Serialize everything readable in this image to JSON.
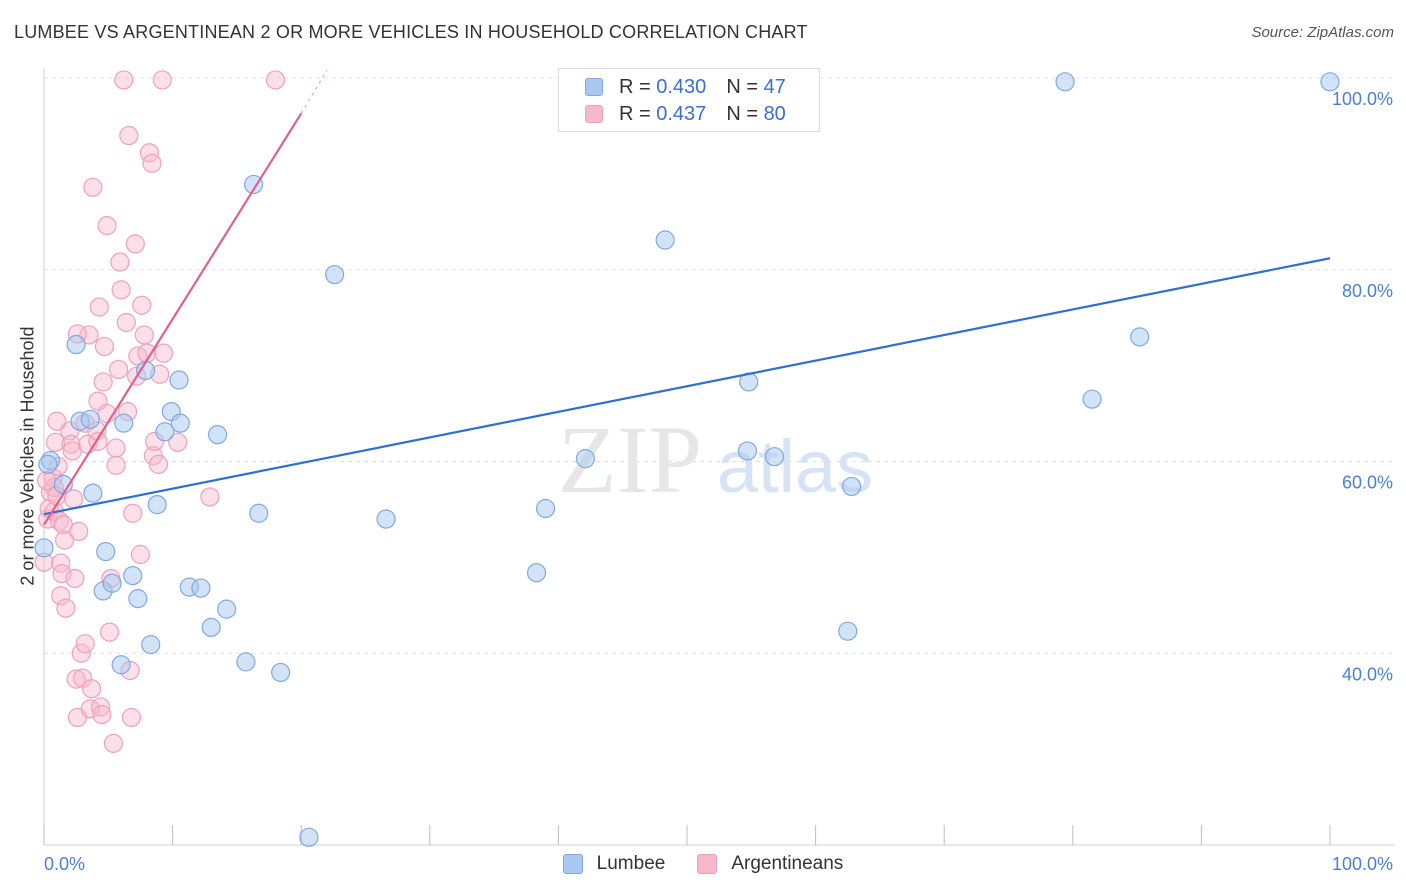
{
  "title": "LUMBEE VS ARGENTINEAN 2 OR MORE VEHICLES IN HOUSEHOLD CORRELATION CHART",
  "source": "Source: ZipAtlas.com",
  "watermark": {
    "zip": "ZIP",
    "atlas": "atlas"
  },
  "legend": {
    "rows": [
      {
        "r_label": "R =",
        "r_value": "0.430",
        "n_label": "N =",
        "n_value": "47",
        "color": "#a8c8f0"
      },
      {
        "r_label": "R =",
        "r_value": "0.437",
        "n_label": "N =",
        "n_value": "80",
        "color": "#f8b8cc"
      }
    ]
  },
  "colors": {
    "lumbee_fill": "#a8c8f0",
    "lumbee_stroke": "#7fa9e0",
    "lumbee_line": "#2e6fd0",
    "arg_fill": "#f8b8cc",
    "arg_stroke": "#eea0ba",
    "arg_line": "#e0608c",
    "tick": "#4a7fd4",
    "grid": "#e2e2e2"
  },
  "chart_data": {
    "type": "scatter",
    "title": "LUMBEE VS ARGENTINEAN 2 OR MORE VEHICLES IN HOUSEHOLD CORRELATION CHART",
    "xlabel": "",
    "ylabel": "2 or more Vehicles in Household",
    "xlim": [
      0,
      100
    ],
    "ylim": [
      20,
      100
    ],
    "x_ticks": [
      "0.0%",
      "100.0%"
    ],
    "y_ticks": [
      {
        "value": 40,
        "label": "40.0%"
      },
      {
        "value": 60,
        "label": "60.0%"
      },
      {
        "value": 80,
        "label": "80.0%"
      },
      {
        "value": 100,
        "label": "100.0%"
      }
    ],
    "grid": true,
    "legend_position": "top-center",
    "series": [
      {
        "name": "Lumbee",
        "r": 0.43,
        "n": 47,
        "trend": [
          [
            0,
            54.5
          ],
          [
            100,
            81.2
          ]
        ],
        "points": [
          [
            0,
            51.0
          ],
          [
            1.5,
            57.6
          ],
          [
            0.5,
            60.1
          ],
          [
            2.8,
            64.2
          ],
          [
            2.5,
            72.2
          ],
          [
            3.6,
            64.4
          ],
          [
            3.8,
            56.7
          ],
          [
            4.8,
            50.6
          ],
          [
            4.6,
            46.5
          ],
          [
            5.3,
            47.3
          ],
          [
            6.2,
            64.0
          ],
          [
            6.0,
            38.8
          ],
          [
            6.9,
            48.1
          ],
          [
            7.3,
            45.7
          ],
          [
            7.9,
            69.5
          ],
          [
            8.3,
            40.9
          ],
          [
            8.8,
            55.5
          ],
          [
            9.4,
            63.1
          ],
          [
            9.9,
            65.2
          ],
          [
            10.6,
            64.0
          ],
          [
            10.5,
            68.5
          ],
          [
            11.3,
            46.9
          ],
          [
            12.2,
            46.8
          ],
          [
            13.0,
            42.7
          ],
          [
            13.5,
            62.8
          ],
          [
            14.2,
            44.6
          ],
          [
            15.7,
            39.1
          ],
          [
            16.3,
            88.9
          ],
          [
            16.7,
            54.6
          ],
          [
            18.4,
            38.0
          ],
          [
            20.6,
            20.8
          ],
          [
            22.6,
            79.5
          ],
          [
            26.6,
            54.0
          ],
          [
            38.3,
            48.4
          ],
          [
            39.0,
            55.1
          ],
          [
            42.1,
            60.3
          ],
          [
            48.3,
            83.1
          ],
          [
            54.8,
            68.3
          ],
          [
            54.7,
            61.1
          ],
          [
            56.8,
            60.5
          ],
          [
            62.8,
            57.4
          ],
          [
            62.5,
            42.3
          ],
          [
            79.4,
            99.6
          ],
          [
            81.5,
            66.5
          ],
          [
            85.2,
            73.0
          ],
          [
            100,
            99.6
          ],
          [
            0.3,
            59.7
          ]
        ]
      },
      {
        "name": "Argentineans",
        "r": 0.437,
        "n": 80,
        "trend": [
          [
            0,
            53.4
          ],
          [
            20.0,
            96.3
          ]
        ],
        "trend_dashed": [
          [
            20.0,
            96.3
          ],
          [
            22.0,
            100.8
          ]
        ],
        "points": [
          [
            0,
            49.5
          ],
          [
            0.3,
            54.0
          ],
          [
            0.4,
            55.1
          ],
          [
            0.5,
            56.8
          ],
          [
            0.7,
            58.3
          ],
          [
            0.8,
            54.8
          ],
          [
            0.8,
            57.3
          ],
          [
            0.9,
            62.0
          ],
          [
            1.0,
            56.4
          ],
          [
            1.1,
            59.5
          ],
          [
            1.2,
            53.8
          ],
          [
            1.3,
            49.4
          ],
          [
            1.3,
            46.0
          ],
          [
            1.4,
            48.3
          ],
          [
            1.5,
            53.4
          ],
          [
            1.6,
            51.8
          ],
          [
            1.7,
            44.7
          ],
          [
            2.0,
            63.2
          ],
          [
            2.1,
            61.8
          ],
          [
            2.2,
            61.1
          ],
          [
            2.3,
            56.1
          ],
          [
            2.4,
            47.8
          ],
          [
            2.5,
            37.3
          ],
          [
            2.6,
            33.3
          ],
          [
            2.7,
            52.7
          ],
          [
            2.9,
            40.0
          ],
          [
            3.0,
            37.4
          ],
          [
            3.2,
            41.0
          ],
          [
            3.2,
            64.0
          ],
          [
            3.4,
            61.8
          ],
          [
            3.5,
            73.2
          ],
          [
            3.6,
            34.2
          ],
          [
            3.7,
            36.3
          ],
          [
            3.8,
            88.6
          ],
          [
            4.1,
            63.2
          ],
          [
            4.2,
            66.3
          ],
          [
            4.2,
            62.1
          ],
          [
            4.3,
            76.1
          ],
          [
            4.4,
            34.4
          ],
          [
            4.5,
            33.6
          ],
          [
            4.6,
            68.3
          ],
          [
            4.7,
            72.0
          ],
          [
            4.9,
            84.6
          ],
          [
            4.9,
            65.0
          ],
          [
            5.1,
            42.2
          ],
          [
            5.2,
            47.8
          ],
          [
            5.4,
            30.6
          ],
          [
            5.6,
            61.4
          ],
          [
            5.6,
            59.6
          ],
          [
            5.8,
            69.6
          ],
          [
            5.9,
            80.8
          ],
          [
            6.0,
            77.9
          ],
          [
            6.2,
            99.8
          ],
          [
            6.4,
            74.5
          ],
          [
            6.5,
            65.2
          ],
          [
            6.6,
            94.0
          ],
          [
            6.7,
            38.2
          ],
          [
            6.8,
            33.3
          ],
          [
            6.9,
            54.6
          ],
          [
            7.1,
            82.7
          ],
          [
            7.2,
            68.9
          ],
          [
            7.3,
            71.0
          ],
          [
            7.5,
            50.3
          ],
          [
            7.6,
            76.3
          ],
          [
            7.8,
            73.2
          ],
          [
            8.0,
            71.3
          ],
          [
            8.2,
            92.2
          ],
          [
            8.4,
            91.1
          ],
          [
            8.5,
            60.6
          ],
          [
            8.6,
            62.1
          ],
          [
            8.9,
            59.7
          ],
          [
            9.0,
            69.1
          ],
          [
            9.2,
            99.8
          ],
          [
            9.3,
            71.3
          ],
          [
            10.4,
            62.0
          ],
          [
            12.9,
            56.3
          ],
          [
            18.0,
            99.8
          ],
          [
            1.0,
            64.2
          ],
          [
            2.6,
            73.3
          ],
          [
            0.2,
            58.0
          ]
        ]
      }
    ]
  },
  "bottom_legend": [
    "Lumbee",
    "Argentineans"
  ]
}
